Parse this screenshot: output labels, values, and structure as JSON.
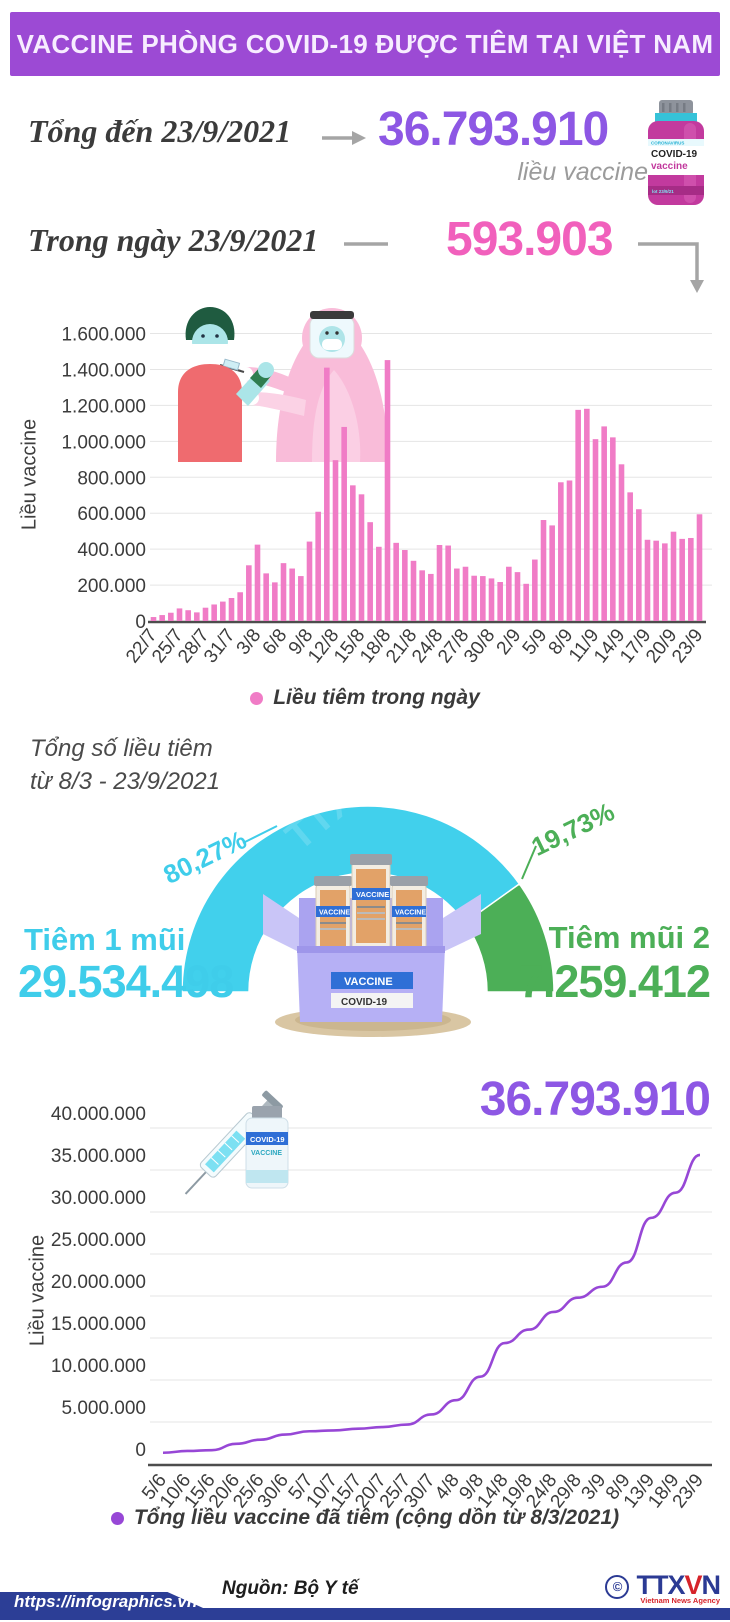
{
  "header": {
    "title": "VACCINE PHÒNG COVID-19 ĐƯỢC TIÊM TẠI VIỆT NAM"
  },
  "summary": {
    "total_label": "Tổng đến 23/9/2021",
    "total_value": "36.793.910",
    "total_unit": "liều vaccine",
    "daily_label": "Trong ngày 23/9/2021",
    "daily_value": "593.903"
  },
  "bar_section": {
    "y_axis": "Liều vaccine",
    "legend": "Liều tiêm trong ngày"
  },
  "gauge_section": {
    "title_line1": "Tổng số liều tiêm",
    "title_line2": "từ 8/3 - 23/9/2021",
    "left_pct": "80,27%",
    "left_label": "Tiêm 1 mũi",
    "left_value": "29.534.498",
    "right_pct": "19,73%",
    "right_label": "Tiêm mũi 2",
    "right_value": "7.259.412",
    "watermark": "TTXVN"
  },
  "line_section": {
    "total": "36.793.910",
    "y_axis": "Liều vaccine",
    "legend": "Tổng liều vaccine đã tiêm (cộng dồn từ 8/3/2021)"
  },
  "footer": {
    "source": "Nguồn: Bộ Y tế",
    "url": "https://infographics.vn",
    "copyright": "©",
    "agency_t1": "TTX",
    "agency_t2": "V",
    "agency_t3": "N",
    "agency_sub": "Vietnam News Agency"
  },
  "icons": {
    "vial_line1": "COVID-19",
    "vial_line2": "vaccine",
    "box_label1": "VACCINE",
    "box_label2": "COVID-19",
    "crate_vial_label": "VACCINE",
    "syr_vial_line1": "COVID-19",
    "syr_vial_line2": "VACCINE"
  },
  "colors": {
    "header_bg": "#9c4ad4",
    "header_text": "#f7edff",
    "purple": "#8d57e4",
    "pink": "#f160bc",
    "bar": "#f07cc6",
    "line": "#9747d6",
    "cyan": "#3fcdea",
    "green": "#4caf57",
    "footer_blue": "#2c3e96",
    "agency_red": "#d6232a",
    "gray_arrow": "#a5a5a5"
  },
  "chart_data": [
    {
      "type": "bar",
      "legend": "Liều tiêm trong ngày",
      "ylabel": "Liều vaccine",
      "ylim": [
        0,
        1600000
      ],
      "ytick_step": 200000,
      "xtick_every": 3,
      "grid": true,
      "color": "#f07cc6",
      "categories": [
        "22/7",
        "23/7",
        "24/7",
        "25/7",
        "26/7",
        "27/7",
        "28/7",
        "29/7",
        "30/7",
        "31/7",
        "1/8",
        "2/8",
        "3/8",
        "4/8",
        "5/8",
        "6/8",
        "7/8",
        "8/8",
        "9/8",
        "10/8",
        "11/8",
        "12/8",
        "13/8",
        "14/8",
        "15/8",
        "16/8",
        "17/8",
        "18/8",
        "19/8",
        "20/8",
        "21/8",
        "22/8",
        "23/8",
        "24/8",
        "25/8",
        "26/8",
        "27/8",
        "28/8",
        "29/8",
        "30/8",
        "31/8",
        "1/9",
        "2/9",
        "3/9",
        "4/9",
        "5/9",
        "6/9",
        "7/9",
        "8/9",
        "9/9",
        "10/9",
        "11/9",
        "12/9",
        "13/9",
        "14/9",
        "15/9",
        "16/9",
        "17/9",
        "18/9",
        "19/9",
        "20/9",
        "21/9",
        "22/9",
        "23/9"
      ],
      "values": [
        22000,
        33000,
        46000,
        70000,
        60000,
        48000,
        74000,
        92000,
        108000,
        128000,
        160000,
        310000,
        425000,
        265000,
        215000,
        322000,
        292000,
        250000,
        442000,
        608000,
        1410000,
        895000,
        1080000,
        755000,
        705000,
        550000,
        413000,
        1452000,
        435000,
        395000,
        335000,
        282000,
        262000,
        423000,
        420000,
        292000,
        302000,
        252000,
        250000,
        237000,
        217000,
        302000,
        272000,
        207000,
        342000,
        562000,
        532000,
        772000,
        782000,
        1175000,
        1181000,
        1012000,
        1083000,
        1022000,
        872000,
        716000,
        622000,
        452000,
        447000,
        432000,
        497000,
        457000,
        462000,
        593903
      ]
    },
    {
      "type": "gauge",
      "title": "Tổng số liều tiêm từ 8/3 - 23/9/2021",
      "span_deg": 180,
      "slices": [
        {
          "label": "Tiêm 1 mũi",
          "value": 29534498,
          "pct": 80.27,
          "pct_label": "80,27%",
          "color": "#41d0ec"
        },
        {
          "label": "Tiêm mũi 2",
          "value": 7259412,
          "pct": 19.73,
          "pct_label": "19,73%",
          "color": "#4caf57"
        }
      ]
    },
    {
      "type": "line",
      "legend": "Tổng liều vaccine đã tiêm (cộng dồn từ 8/3/2021)",
      "ylabel": "Liều vaccine",
      "ylim": [
        0,
        40000000
      ],
      "ytick_step": 5000000,
      "grid": true,
      "color": "#9747d6",
      "categories": [
        "5/6",
        "10/6",
        "15/6",
        "20/6",
        "25/6",
        "30/6",
        "5/7",
        "10/7",
        "15/7",
        "20/7",
        "25/7",
        "30/7",
        "4/8",
        "9/8",
        "14/8",
        "19/8",
        "24/8",
        "29/8",
        "3/9",
        "8/9",
        "13/9",
        "18/9",
        "23/9"
      ],
      "values": [
        1340000,
        1550000,
        1650000,
        2400000,
        2900000,
        3500000,
        3900000,
        4000000,
        4200000,
        4400000,
        4700000,
        5900000,
        7600000,
        10400000,
        14400000,
        16000000,
        18100000,
        19800000,
        21100000,
        24000000,
        29300000,
        32300000,
        36793910
      ]
    }
  ]
}
